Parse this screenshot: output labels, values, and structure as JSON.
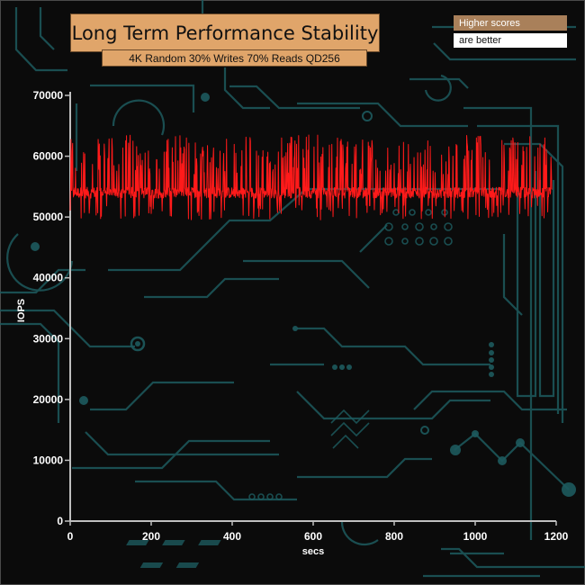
{
  "header": {
    "title": "Long Term Performance Stability",
    "subtitle": "4K Random 30% Writes 70% Reads QD256"
  },
  "legend": {
    "line1": "Higher scores",
    "line2": "are better"
  },
  "colors": {
    "background": "#0b0b0b",
    "circuit": "#1d5a5e",
    "series": "#ff1a1a",
    "axis": "#bfbfbf",
    "title_bg": "#e0a56a",
    "legend_bg": "#a9805a"
  },
  "chart_data": {
    "type": "line",
    "xlabel": "secs",
    "ylabel": "IOPS",
    "xlim": [
      0,
      1200
    ],
    "ylim": [
      0,
      70000
    ],
    "x_ticks": [
      "0",
      "200",
      "400",
      "600",
      "800",
      "1000",
      "1200"
    ],
    "y_ticks": [
      "0",
      "10000",
      "20000",
      "30000",
      "40000",
      "50000",
      "60000",
      "70000"
    ],
    "grid": false,
    "x_range": [
      0,
      1190
    ],
    "x_step": 1,
    "baseline": 54000,
    "noise": 1500,
    "spike_high_range": [
      57000,
      63500
    ],
    "spike_low_range": [
      49500,
      52000
    ],
    "series": [
      {
        "x": [
          0,
          25,
          50,
          100,
          150,
          200,
          250,
          300,
          350,
          400,
          450,
          500,
          550,
          600,
          650,
          700,
          750,
          800,
          850,
          900,
          950,
          1000,
          1050,
          1100,
          1150,
          1190
        ],
        "values": [
          54500,
          54000,
          54200,
          53800,
          54100,
          54000,
          53900,
          54200,
          54000,
          54100,
          53800,
          54000,
          54300,
          53900,
          54000,
          54100,
          54200,
          53800,
          54000,
          54100,
          53900,
          54000,
          54200,
          53800,
          54000,
          54100
        ]
      }
    ]
  }
}
